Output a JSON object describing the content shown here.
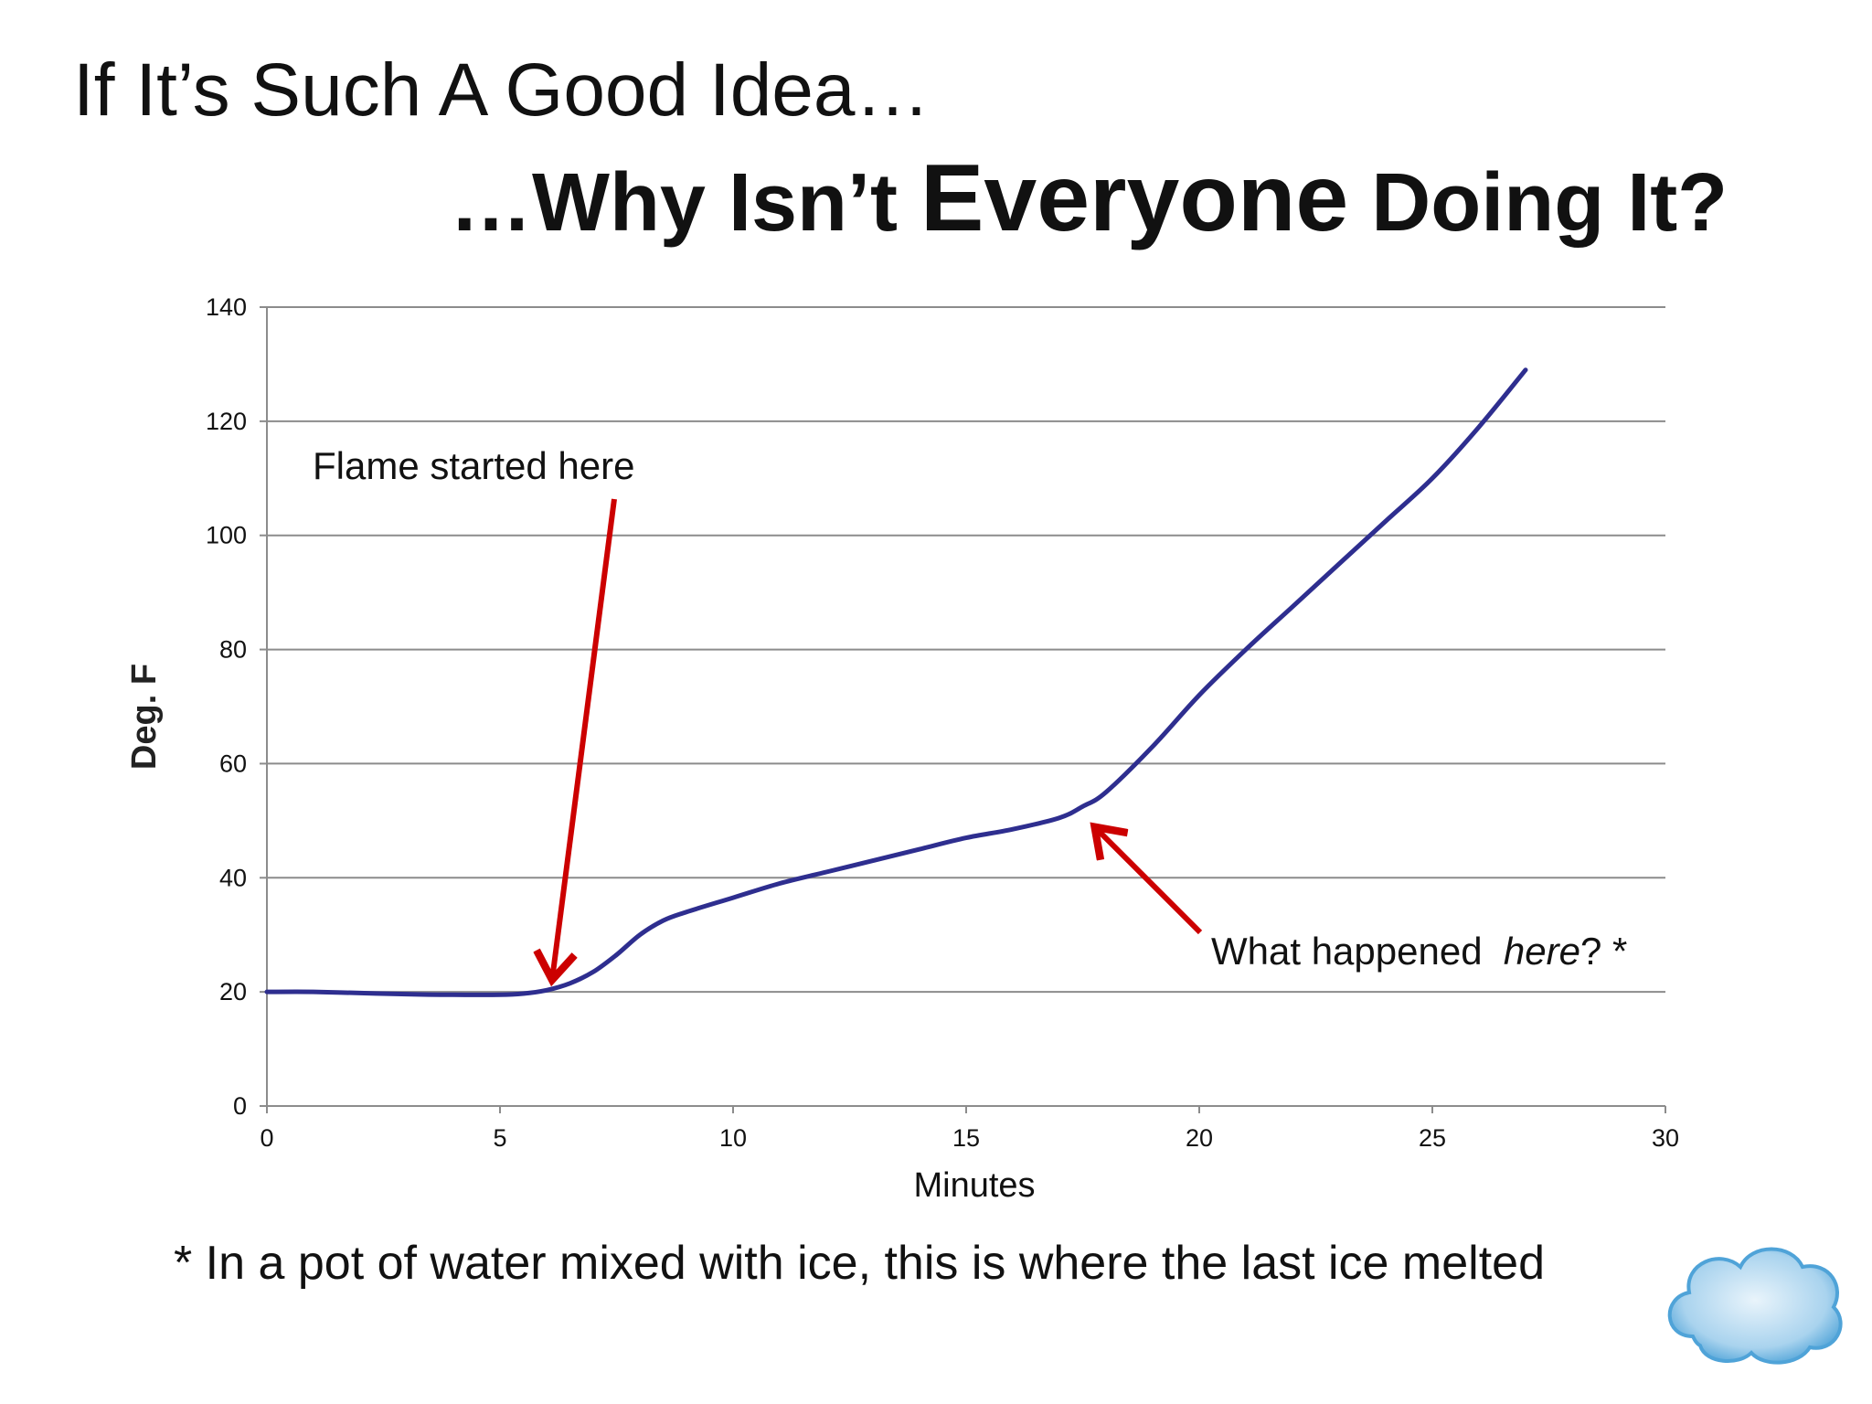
{
  "slide": {
    "title_line1": "If It’s Such A Good Idea…",
    "title_line2_pre": "…Why Isn’t ",
    "title_line2_big": "Everyone",
    "title_line2_post": " Doing It?",
    "footnote": "* In a pot of water mixed with ice, this is where the last ice melted",
    "logo_icon": "cloud-logo-icon"
  },
  "chart_data": {
    "type": "line",
    "title": "",
    "xlabel": "Minutes",
    "ylabel": "Deg. F",
    "xlim": [
      0,
      30
    ],
    "ylim": [
      0,
      140
    ],
    "x_ticks": [
      0,
      5,
      10,
      15,
      20,
      25,
      30
    ],
    "y_ticks": [
      0,
      20,
      40,
      60,
      80,
      100,
      120,
      140
    ],
    "grid": "horizontal",
    "legend": "none",
    "series": [
      {
        "color": "#2e2e8f",
        "x": [
          0,
          1,
          2,
          3,
          4,
          5,
          5.5,
          6,
          6.5,
          7,
          7.5,
          8,
          8.5,
          9,
          10,
          11,
          12,
          13,
          14,
          15,
          16,
          17,
          17.5,
          18,
          19,
          20,
          21,
          22,
          23,
          24,
          25,
          26,
          27
        ],
        "y": [
          20,
          20,
          19.8,
          19.6,
          19.5,
          19.5,
          19.7,
          20.3,
          21.5,
          23.5,
          26.5,
          30,
          32.5,
          34,
          36.5,
          39,
          41,
          43,
          45,
          47,
          48.5,
          50.5,
          52.5,
          55,
          63,
          72,
          80,
          87.5,
          95,
          102.5,
          110,
          119,
          129
        ]
      }
    ],
    "annotations": [
      {
        "text": "Flame started here",
        "arrow_to": [
          6,
          20.5
        ],
        "arrow_color": "#cc0000"
      },
      {
        "text_pre": "What happened  ",
        "text_italic": "here",
        "text_post": "? *",
        "arrow_to": [
          17.6,
          50.5
        ],
        "arrow_color": "#cc0000"
      }
    ]
  }
}
